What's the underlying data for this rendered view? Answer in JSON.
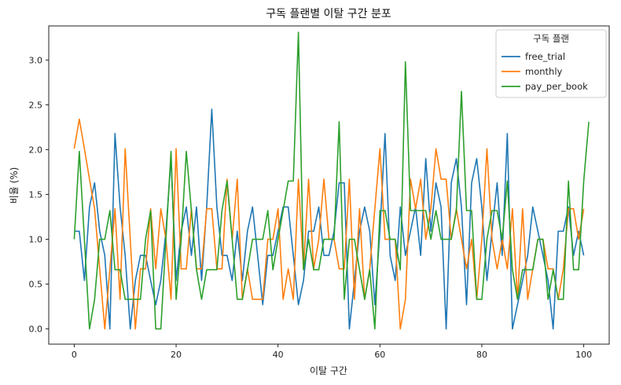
{
  "chart_data": {
    "type": "line",
    "title": "구독 플랜별 이탈 구간 분포",
    "xlabel": "이탈 구간",
    "ylabel": "비율 (%)",
    "xlim": [
      -5,
      105
    ],
    "ylim": [
      -0.17,
      3.38
    ],
    "xticks": [
      0,
      20,
      40,
      60,
      80,
      100
    ],
    "yticks": [
      0.0,
      0.5,
      1.0,
      1.5,
      2.0,
      2.5,
      3.0
    ],
    "grid": false,
    "legend": {
      "title": "구독 플랜",
      "position": "top-right"
    },
    "series": [
      {
        "name": "free_trial",
        "color": "#1f77b4",
        "values": [
          1.09,
          1.09,
          0.54,
          1.36,
          1.63,
          1.09,
          0.82,
          0.0,
          2.18,
          1.36,
          0.82,
          0.0,
          0.54,
          0.82,
          0.82,
          0.54,
          0.27,
          0.54,
          1.09,
          1.9,
          0.54,
          1.09,
          1.36,
          0.82,
          1.36,
          0.54,
          1.36,
          2.45,
          1.36,
          0.82,
          0.82,
          0.54,
          1.09,
          0.54,
          1.09,
          1.36,
          0.82,
          0.27,
          0.82,
          0.82,
          1.09,
          1.36,
          1.36,
          0.82,
          0.27,
          0.54,
          1.09,
          1.09,
          1.36,
          0.82,
          0.82,
          1.09,
          1.63,
          1.63,
          0.0,
          0.54,
          1.09,
          1.36,
          1.09,
          0.27,
          1.09,
          2.18,
          0.82,
          0.54,
          1.36,
          0.82,
          1.09,
          1.36,
          0.82,
          1.9,
          1.09,
          1.63,
          1.36,
          0.0,
          1.63,
          1.9,
          1.36,
          0.27,
          1.63,
          1.9,
          1.36,
          0.54,
          1.09,
          1.63,
          0.82,
          2.18,
          0.0,
          0.27,
          0.54,
          0.82,
          1.36,
          1.09,
          0.82,
          0.54,
          0.0,
          1.09,
          1.09,
          1.36,
          0.82,
          1.09,
          0.82
        ]
      },
      {
        "name": "monthly",
        "color": "#ff7f0e",
        "values": [
          2.01,
          2.34,
          2.01,
          1.67,
          1.34,
          0.67,
          0.0,
          0.67,
          1.34,
          0.33,
          2.01,
          1.0,
          0.0,
          0.67,
          0.67,
          1.34,
          0.67,
          1.34,
          1.0,
          0.33,
          2.01,
          0.67,
          0.67,
          1.34,
          0.67,
          0.67,
          1.34,
          1.34,
          0.67,
          0.67,
          1.67,
          1.0,
          1.67,
          0.33,
          0.67,
          0.33,
          0.33,
          0.33,
          1.0,
          1.0,
          1.34,
          0.33,
          0.67,
          0.33,
          1.67,
          0.67,
          1.67,
          0.67,
          1.0,
          1.67,
          1.0,
          1.0,
          0.67,
          0.67,
          1.67,
          0.33,
          1.34,
          0.33,
          0.67,
          1.34,
          2.01,
          1.0,
          1.0,
          1.0,
          0.0,
          0.33,
          1.67,
          1.34,
          1.67,
          1.0,
          1.34,
          2.01,
          1.67,
          1.67,
          1.0,
          1.34,
          1.0,
          0.67,
          1.0,
          0.33,
          1.0,
          2.01,
          1.0,
          0.67,
          1.0,
          0.67,
          1.34,
          0.33,
          1.34,
          0.33,
          0.67,
          1.0,
          1.0,
          0.67,
          0.67,
          0.33,
          0.67,
          1.34,
          1.34,
          1.0,
          1.34
        ]
      },
      {
        "name": "pay_per_book",
        "color": "#2ca02c",
        "values": [
          1.0,
          1.98,
          1.0,
          0.0,
          0.33,
          1.0,
          1.0,
          1.32,
          0.66,
          0.66,
          0.33,
          0.33,
          0.33,
          0.33,
          1.0,
          1.32,
          0.0,
          0.0,
          1.0,
          1.98,
          0.33,
          1.0,
          1.98,
          1.32,
          0.66,
          0.33,
          0.66,
          0.66,
          0.66,
          1.32,
          1.65,
          1.0,
          0.33,
          0.33,
          0.66,
          1.0,
          1.0,
          1.0,
          1.32,
          0.66,
          1.0,
          1.32,
          1.65,
          1.65,
          3.31,
          0.66,
          1.0,
          0.66,
          0.66,
          1.0,
          1.0,
          1.0,
          2.31,
          0.33,
          1.0,
          1.0,
          0.66,
          0.33,
          0.66,
          0.0,
          1.32,
          1.32,
          1.0,
          1.0,
          0.66,
          2.98,
          1.32,
          1.32,
          1.32,
          1.32,
          1.0,
          1.32,
          1.0,
          1.0,
          1.0,
          1.32,
          2.65,
          1.32,
          1.32,
          0.33,
          0.33,
          1.0,
          1.32,
          1.32,
          1.0,
          1.65,
          0.66,
          0.33,
          0.66,
          0.66,
          0.66,
          1.0,
          1.0,
          0.33,
          0.66,
          0.33,
          0.33,
          1.65,
          0.66,
          0.66,
          1.65,
          2.31
        ]
      }
    ]
  }
}
